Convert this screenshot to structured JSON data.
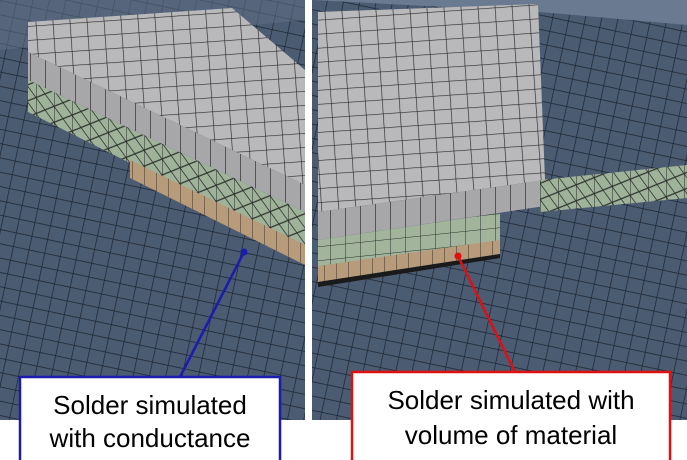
{
  "callouts": [
    {
      "lines": [
        "Solder simulated",
        "with conductance"
      ]
    },
    {
      "lines": [
        "Solder simulated with",
        "volume of material"
      ]
    }
  ]
}
